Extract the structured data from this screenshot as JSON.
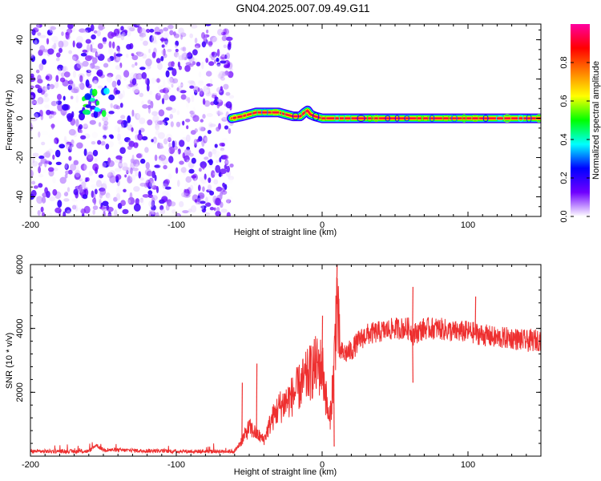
{
  "title": "GN04.2025.007.09.49.G11",
  "panels": [
    {
      "id": "spectrogram",
      "xlabel": "Height of straight line (km)",
      "ylabel": "Frequency (Hz)",
      "xlim": [
        -200,
        150
      ],
      "ylim": [
        -50,
        48
      ],
      "xticks": [
        -200,
        -100,
        0,
        100
      ],
      "yticks": [
        -40,
        -20,
        0,
        20,
        40
      ],
      "colorbar": {
        "label": "Normalized spectral amplitude",
        "range": [
          0,
          1
        ],
        "ticks": [
          "0.0",
          "0.2",
          "0.4",
          "0.6",
          "0.8"
        ],
        "tick_values": [
          0,
          0.2,
          0.4,
          0.6,
          0.8
        ],
        "colors": [
          "#ffffff",
          "#7000ff",
          "#0000ff",
          "#00ffff",
          "#00ff00",
          "#ffff00",
          "#ff8000",
          "#ff0000",
          "#ff00a0"
        ]
      }
    },
    {
      "id": "snr",
      "xlabel": "Height of straight line (km)",
      "ylabel": "SNR (10 * v/v)",
      "xlim": [
        -200,
        150
      ],
      "ylim": [
        0,
        6000
      ],
      "xticks": [
        -200,
        -100,
        0,
        100
      ],
      "yticks": [
        2000,
        4000,
        6000
      ],
      "line_color": "#ee3030"
    }
  ],
  "chart_data": [
    {
      "type": "heatmap",
      "title": "GN04.2025.007.09.49.G11",
      "xlabel": "Height of straight line (km)",
      "ylabel": "Frequency (Hz)",
      "xlim": [
        -200,
        150
      ],
      "ylim": [
        -50,
        48
      ],
      "zlabel": "Normalized spectral amplitude",
      "zlim": [
        0,
        1
      ],
      "noise_region_x": [
        -200,
        -62
      ],
      "noise_amplitude_range": [
        0.0,
        0.2
      ],
      "carrier_track": {
        "x": [
          -62,
          -55,
          -50,
          -45,
          -40,
          -35,
          -30,
          -25,
          -20,
          -15,
          -12,
          -10,
          -8,
          -5,
          0,
          20,
          50,
          100,
          150
        ],
        "frequency": [
          0,
          1,
          2,
          3,
          3,
          3,
          3,
          2,
          1,
          1,
          3,
          4,
          2,
          1,
          0,
          0,
          0,
          0,
          0
        ],
        "amplitude": [
          0.4,
          0.5,
          0.6,
          0.7,
          0.75,
          0.8,
          0.85,
          0.85,
          0.9,
          0.7,
          0.6,
          0.65,
          0.8,
          0.9,
          0.92,
          0.93,
          0.93,
          0.93,
          0.93
        ]
      },
      "blob_cluster": {
        "x": -155,
        "frequency": 8,
        "amplitude": 0.35
      }
    },
    {
      "type": "line",
      "xlabel": "Height of straight line (km)",
      "ylabel": "SNR (10 * v/v)",
      "xlim": [
        -200,
        150
      ],
      "ylim": [
        0,
        6000
      ],
      "envelope": {
        "x": [
          -200,
          -160,
          -155,
          -150,
          -100,
          -60,
          -55,
          -50,
          -45,
          -40,
          -35,
          -30,
          -25,
          -20,
          -15,
          -10,
          -5,
          0,
          5,
          8,
          10,
          12,
          15,
          20,
          25,
          30,
          40,
          50,
          60,
          62,
          70,
          80,
          90,
          100,
          110,
          120,
          130,
          140,
          150
        ],
        "y": [
          150,
          150,
          350,
          200,
          150,
          150,
          500,
          900,
          700,
          500,
          1100,
          1500,
          1700,
          1900,
          2200,
          2500,
          2800,
          2800,
          1000,
          2600,
          5000,
          3300,
          3200,
          3300,
          3600,
          3800,
          3900,
          4000,
          4000,
          3800,
          4000,
          4000,
          3900,
          3900,
          3800,
          3700,
          3700,
          3600,
          3650
        ]
      },
      "spikes": [
        {
          "x": -55,
          "y": 2300
        },
        {
          "x": -45,
          "y": 2900
        },
        {
          "x": -2,
          "y": 3200
        },
        {
          "x": 0,
          "y": 4400
        },
        {
          "x": 8,
          "y": 300
        },
        {
          "x": 10,
          "y": 6000
        },
        {
          "x": 62,
          "y": 5300
        },
        {
          "x": 62,
          "y": 2300
        },
        {
          "x": 105,
          "y": 5000
        }
      ]
    }
  ]
}
